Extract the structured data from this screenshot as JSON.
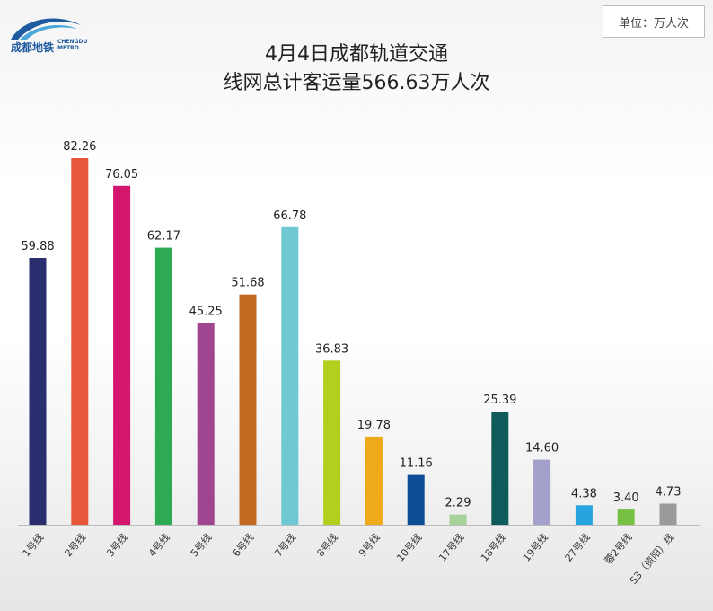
{
  "logo": {
    "name_cn": "成都地铁",
    "name_en_line1": "CHENGDU",
    "name_en_line2": "METRO",
    "color": "#1e5aa0"
  },
  "unit_label": "单位：万人次",
  "title_line1": "4月4日成都轨道交通",
  "title_line2": "线网总计客运量566.63万人次",
  "chart_data": {
    "type": "bar",
    "title": "4月4日成都轨道交通线网总计客运量566.63万人次",
    "unit": "万人次",
    "categories": [
      "1号线",
      "2号线",
      "3号线",
      "4号线",
      "5号线",
      "6号线",
      "7号线",
      "8号线",
      "9号线",
      "10号线",
      "17号线",
      "18号线",
      "19号线",
      "27号线",
      "蓉2号线",
      "S3（资阳）线"
    ],
    "values": [
      59.88,
      82.26,
      76.05,
      62.17,
      45.25,
      51.68,
      66.78,
      36.83,
      19.78,
      11.16,
      2.29,
      25.39,
      14.6,
      4.38,
      3.4,
      4.73
    ],
    "value_labels": [
      "59.88",
      "82.26",
      "76.05",
      "62.17",
      "45.25",
      "51.68",
      "66.78",
      "36.83",
      "19.78",
      "11.16",
      "2.29",
      "25.39",
      "14.60",
      "4.38",
      "3.40",
      "4.73"
    ],
    "colors": [
      "#2a2d6e",
      "#e8573b",
      "#d4166f",
      "#2eaa52",
      "#a0458f",
      "#c06a22",
      "#6fc8d2",
      "#b2cf1e",
      "#eeaa1a",
      "#0e4e98",
      "#a6d29a",
      "#0f5b5c",
      "#a3a1cc",
      "#27a3de",
      "#77c043",
      "#9a9a9a"
    ],
    "ylim": [
      0,
      82.26
    ],
    "grid": false,
    "legend": "none"
  }
}
